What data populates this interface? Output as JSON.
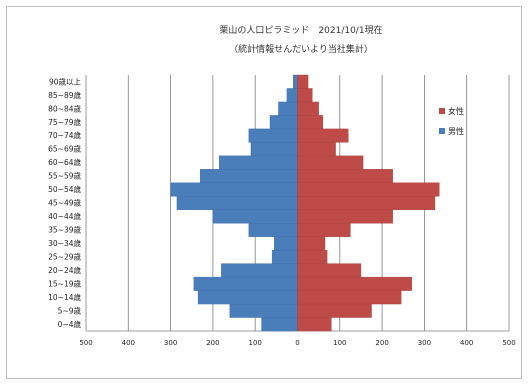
{
  "chart_data": {
    "type": "bar",
    "orientation": "horizontal-population-pyramid",
    "title": "栗山の人口ピラミッド　2021/10/1現在",
    "subtitle": "（統計情報せんだいより当社集計）",
    "categories": [
      "0~4歳",
      "5~9歳",
      "10~14歳",
      "15~19歳",
      "20~24歳",
      "25~29歳",
      "30~34歳",
      "35~39歳",
      "40~44歳",
      "45~49歳",
      "50~54歳",
      "55~59歳",
      "60~64歳",
      "65~69歳",
      "70~74歳",
      "75~79歳",
      "80~84歳",
      "85~89歳",
      "90歳以上"
    ],
    "series": [
      {
        "name": "男性",
        "color": "#4a7ebb",
        "side": "left",
        "values": [
          85,
          160,
          235,
          245,
          180,
          60,
          55,
          115,
          200,
          285,
          300,
          230,
          185,
          110,
          115,
          65,
          45,
          25,
          10
        ]
      },
      {
        "name": "女性",
        "color": "#be4b48",
        "side": "right",
        "values": [
          80,
          175,
          245,
          270,
          150,
          70,
          65,
          125,
          225,
          325,
          335,
          225,
          155,
          90,
          120,
          60,
          50,
          35,
          25
        ]
      }
    ],
    "x_axis": {
      "ticks": [
        "500",
        "400",
        "300",
        "200",
        "100",
        "0",
        "100",
        "200",
        "300",
        "400",
        "500"
      ],
      "range": [
        -500,
        500
      ]
    },
    "grid": true,
    "legend_position": "right"
  }
}
